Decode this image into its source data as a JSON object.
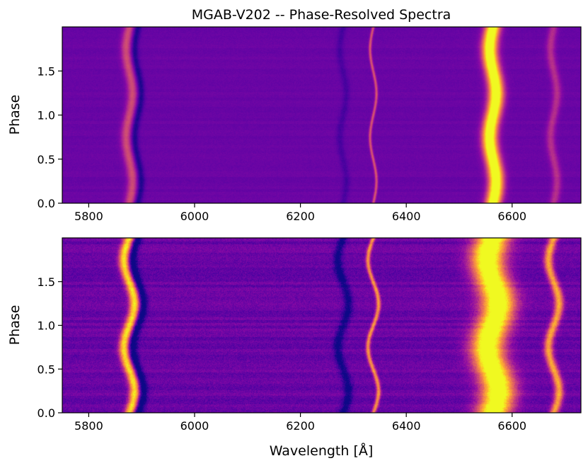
{
  "title": "MGAB-V202 -- Phase-Resolved Spectra",
  "xlabel": "Wavelength [Å]",
  "colors": {
    "background": "#ffffff",
    "colormap": [
      "#0d0887",
      "#5302a3",
      "#8b0aa5",
      "#b83289",
      "#db5c68",
      "#f48849",
      "#febc2a",
      "#f0f921"
    ]
  },
  "chart_data": [
    {
      "type": "heatmap",
      "panel": "top",
      "title": "MGAB-V202 -- Phase-Resolved Spectra",
      "xlabel": "",
      "ylabel": "Phase",
      "xlim": [
        5750,
        6730
      ],
      "ylim": [
        0.0,
        2.0
      ],
      "xticks": [
        5800,
        6000,
        6200,
        6400,
        6600
      ],
      "xtick_labels": [
        "5800",
        "6000",
        "6200",
        "6400",
        "6600"
      ],
      "yticks": [
        0.0,
        0.5,
        1.0,
        1.5
      ],
      "ytick_labels": [
        "0.0",
        "0.5",
        "1.0",
        "1.5"
      ],
      "colormap": "plasma",
      "features": [
        {
          "center": 5876,
          "width": 7,
          "strength": 0.32,
          "type": "emission"
        },
        {
          "center": 5892,
          "width": 5,
          "strength": -0.18,
          "type": "absorption"
        },
        {
          "center": 6280,
          "width": 5,
          "strength": -0.08,
          "type": "absorption"
        },
        {
          "center": 6337,
          "width": 2,
          "strength": 0.35,
          "type": "emission"
        },
        {
          "center": 6563,
          "width": 10,
          "strength": 1.0,
          "type": "emission"
        },
        {
          "center": 6678,
          "width": 6,
          "strength": 0.22,
          "type": "emission"
        }
      ],
      "velocity_amplitude": 6,
      "noise": 0.04
    },
    {
      "type": "heatmap",
      "panel": "bottom",
      "title": "",
      "xlabel": "Wavelength [Å]",
      "ylabel": "Phase",
      "xlim": [
        5750,
        6730
      ],
      "ylim": [
        0.0,
        2.0
      ],
      "xticks": [
        5800,
        6000,
        6200,
        6400,
        6600
      ],
      "xtick_labels": [
        "5800",
        "6000",
        "6200",
        "6400",
        "6600"
      ],
      "yticks": [
        0.0,
        0.5,
        1.0,
        1.5
      ],
      "ytick_labels": [
        "0.0",
        "0.5",
        "1.0",
        "1.5"
      ],
      "colormap": "plasma",
      "features": [
        {
          "center": 5876,
          "width": 7,
          "strength": 0.75,
          "type": "emission"
        },
        {
          "center": 5892,
          "width": 6,
          "strength": -0.3,
          "type": "absorption"
        },
        {
          "center": 6280,
          "width": 6,
          "strength": -0.22,
          "type": "absorption"
        },
        {
          "center": 6337,
          "width": 3,
          "strength": 0.55,
          "type": "emission"
        },
        {
          "center": 6563,
          "width": 22,
          "strength": 1.0,
          "type": "emission"
        },
        {
          "center": 6678,
          "width": 6,
          "strength": 0.6,
          "type": "emission"
        }
      ],
      "velocity_amplitude": 10,
      "noise": 0.12
    }
  ]
}
